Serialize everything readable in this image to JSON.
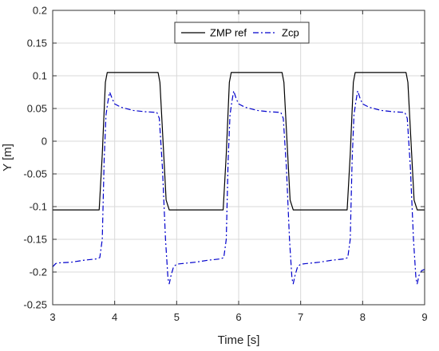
{
  "chart_data": {
    "type": "line",
    "title": "",
    "xlabel": "Time [s]",
    "ylabel": "Y [m]",
    "xlim": [
      3,
      9
    ],
    "ylim": [
      -0.25,
      0.2
    ],
    "grid": true,
    "legend_position": "top-center",
    "x_ticks": [
      3,
      4,
      5,
      6,
      7,
      8,
      9
    ],
    "x_tick_labels": [
      "3",
      "4",
      "5",
      "6",
      "7",
      "8",
      "9"
    ],
    "y_ticks": [
      -0.25,
      -0.2,
      -0.15,
      -0.1,
      -0.05,
      0,
      0.05,
      0.1,
      0.15,
      0.2
    ],
    "y_tick_labels": [
      "-0.25",
      "-0.2",
      "-0.15",
      "-0.1",
      "-0.05",
      "0",
      "0.05",
      "0.1",
      "0.15",
      "0.2"
    ],
    "series": [
      {
        "name": "ZMP ref",
        "color": "#000000",
        "style": "solid",
        "x": [
          3.0,
          3.75,
          3.8,
          3.85,
          3.88,
          4.7,
          4.73,
          4.78,
          4.83,
          4.88,
          5.75,
          5.8,
          5.85,
          5.88,
          6.7,
          6.73,
          6.78,
          6.83,
          6.88,
          7.75,
          7.8,
          7.85,
          7.88,
          8.7,
          8.73,
          8.78,
          8.83,
          8.88,
          9.0
        ],
        "y": [
          -0.105,
          -0.105,
          -0.02,
          0.09,
          0.105,
          0.105,
          0.09,
          0.0,
          -0.09,
          -0.105,
          -0.105,
          -0.02,
          0.09,
          0.105,
          0.105,
          0.09,
          0.0,
          -0.09,
          -0.105,
          -0.105,
          -0.02,
          0.09,
          0.105,
          0.105,
          0.09,
          0.0,
          -0.09,
          -0.105,
          -0.105
        ]
      },
      {
        "name": "Zcp",
        "color": "#0000cc",
        "style": "dashdot",
        "x": [
          3.0,
          3.05,
          3.1,
          3.3,
          3.5,
          3.7,
          3.76,
          3.8,
          3.83,
          3.86,
          3.89,
          3.92,
          3.96,
          4.0,
          4.1,
          4.3,
          4.5,
          4.68,
          4.72,
          4.77,
          4.82,
          4.86,
          4.88,
          4.91,
          4.95,
          5.0,
          5.1,
          5.3,
          5.5,
          5.7,
          5.76,
          5.8,
          5.83,
          5.86,
          5.89,
          5.92,
          5.96,
          6.0,
          6.1,
          6.3,
          6.5,
          6.68,
          6.72,
          6.77,
          6.82,
          6.86,
          6.88,
          6.91,
          6.95,
          7.0,
          7.1,
          7.3,
          7.5,
          7.7,
          7.76,
          7.8,
          7.83,
          7.86,
          7.89,
          7.92,
          7.96,
          8.0,
          8.1,
          8.3,
          8.5,
          8.68,
          8.72,
          8.77,
          8.82,
          8.86,
          8.88,
          8.91,
          8.95,
          9.0
        ],
        "y": [
          -0.192,
          -0.187,
          -0.186,
          -0.185,
          -0.182,
          -0.18,
          -0.178,
          -0.15,
          -0.03,
          0.04,
          0.06,
          0.075,
          0.065,
          0.057,
          0.052,
          0.047,
          0.045,
          0.044,
          0.035,
          -0.04,
          -0.15,
          -0.21,
          -0.218,
          -0.205,
          -0.192,
          -0.188,
          -0.187,
          -0.185,
          -0.182,
          -0.18,
          -0.178,
          -0.15,
          -0.03,
          0.04,
          0.06,
          0.077,
          0.065,
          0.057,
          0.052,
          0.047,
          0.045,
          0.044,
          0.035,
          -0.04,
          -0.15,
          -0.21,
          -0.218,
          -0.205,
          -0.192,
          -0.188,
          -0.187,
          -0.185,
          -0.182,
          -0.18,
          -0.178,
          -0.15,
          -0.03,
          0.04,
          0.06,
          0.077,
          0.065,
          0.057,
          0.052,
          0.047,
          0.045,
          0.044,
          0.035,
          -0.04,
          -0.15,
          -0.21,
          -0.218,
          -0.205,
          -0.198,
          -0.196
        ]
      }
    ]
  }
}
